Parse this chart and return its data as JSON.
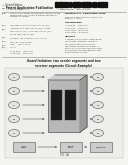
{
  "page_bg": "#f4f4f0",
  "barcode_color": "#111111",
  "fig_caption": "Guard Isolation: two sender segments and two\nreceiver segments (Circuit Example)",
  "text_dark": "#222222",
  "text_mid": "#444444",
  "text_light": "#666666",
  "line_color": "#888888",
  "diagram_bg": "#eeeeea",
  "box_face": "#cccccc",
  "box_dark": "#1a1a1a",
  "box_edge": "#555555",
  "ellipse_face": "#e4e4e4",
  "arrow_color": "#555555",
  "sensor_face": "#b8b8b8",
  "sensor_side": "#999999",
  "sensor_top": "#d0d0d0"
}
